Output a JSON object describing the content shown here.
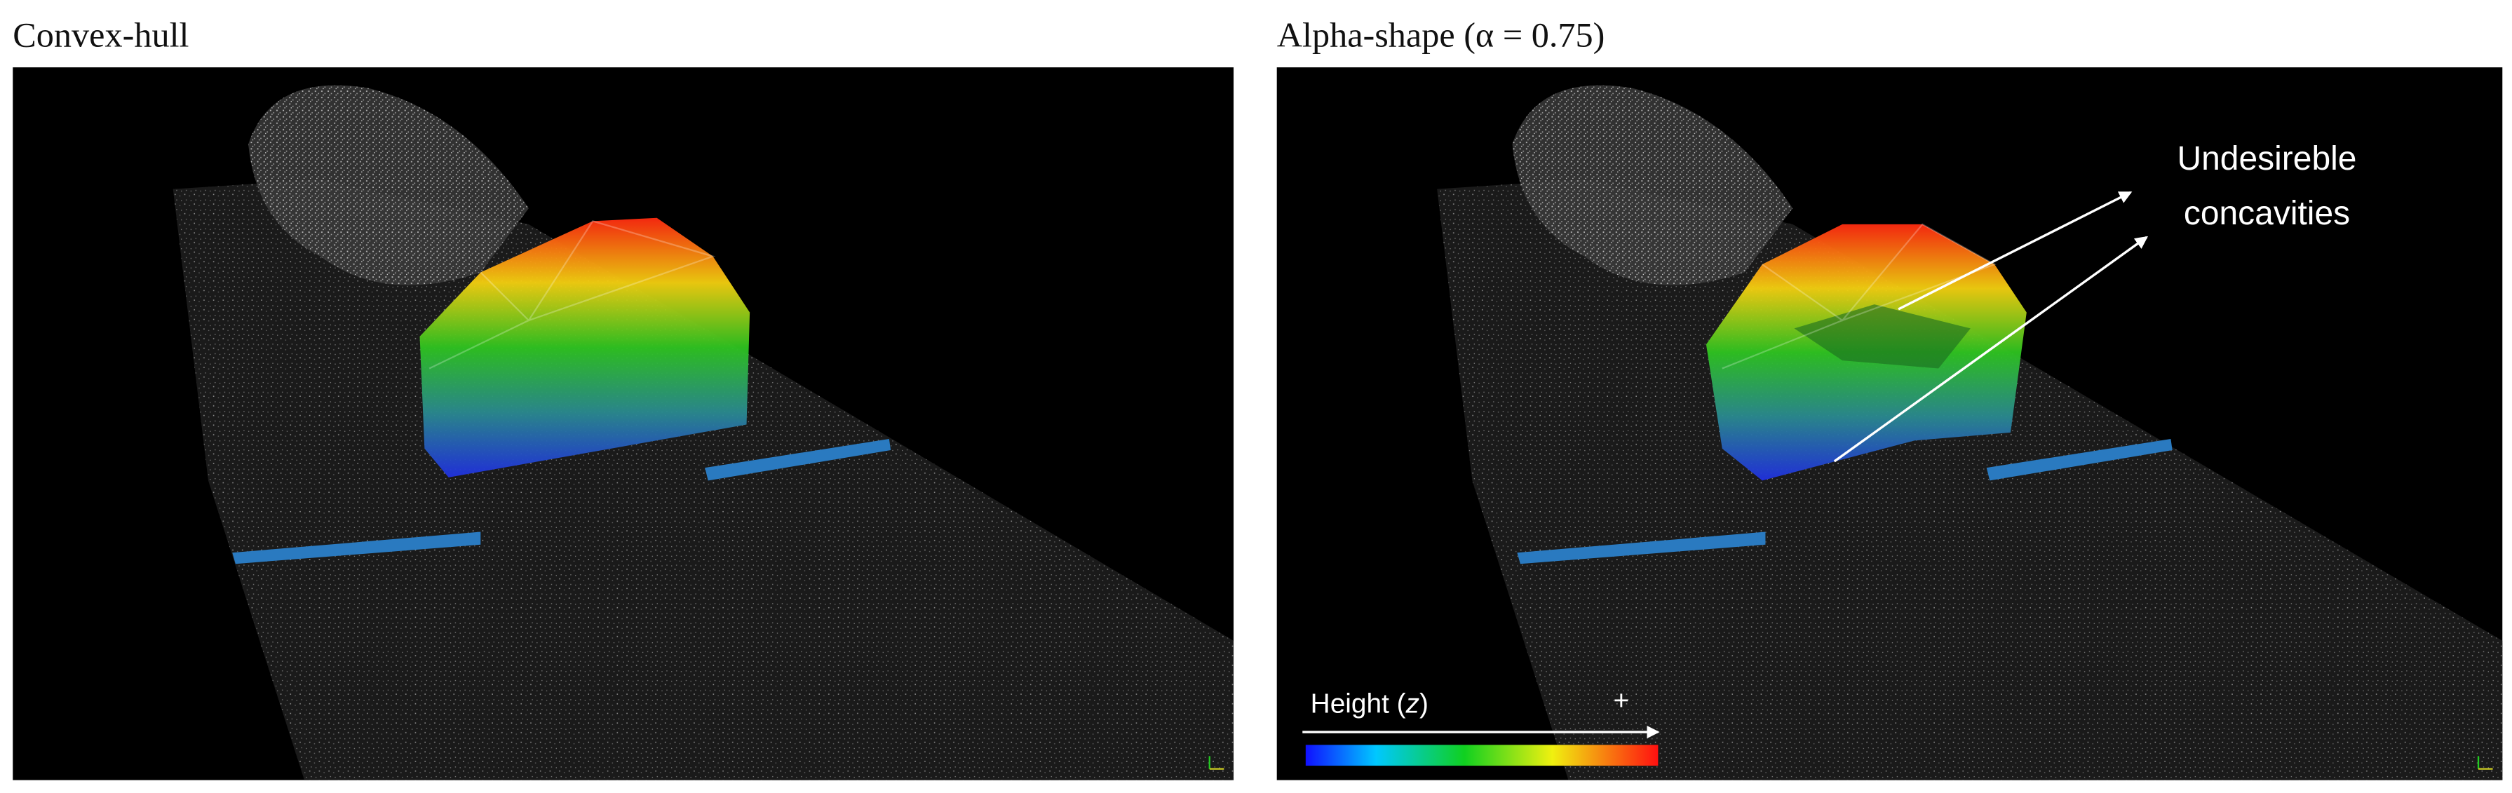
{
  "panels": [
    {
      "title": "Convex-hull"
    },
    {
      "title": "Alpha-shape (α = 0.75)",
      "annotation": [
        "Undesireble",
        "concavities"
      ],
      "legend": {
        "label_prefix": "Height (",
        "label_variable": "z",
        "label_suffix": ")",
        "max_marker": "+"
      }
    }
  ]
}
